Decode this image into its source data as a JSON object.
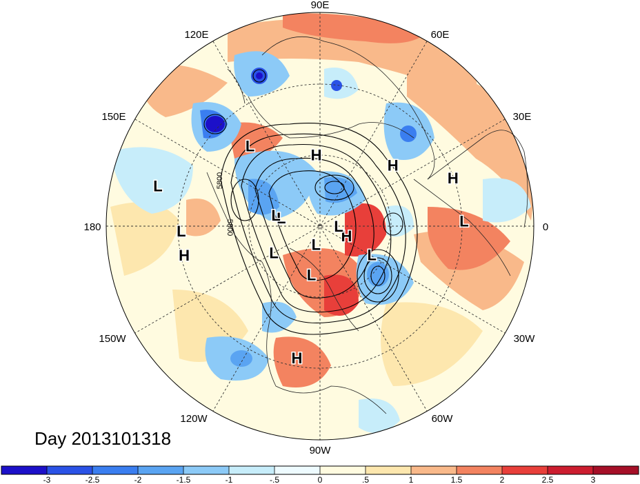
{
  "title": "Day 2013101318",
  "longitude_labels": {
    "e90": "90E",
    "e60": "60E",
    "e120": "120E",
    "e30": "30E",
    "e150": "150E",
    "zero": "0",
    "d180": "180",
    "w30": "30W",
    "w150": "150W",
    "w60": "60W",
    "w120": "120W",
    "w90": "90W"
  },
  "contour_labels": [
    "5800",
    "5800"
  ],
  "pressure_centers": [
    {
      "type": "H",
      "lon": 93,
      "lat": 53
    },
    {
      "type": "H",
      "lon": 40,
      "lat": 42
    },
    {
      "type": "H",
      "lon": 192,
      "lat": 24
    },
    {
      "type": "H",
      "lon": 20,
      "lat": 23
    },
    {
      "type": "H",
      "lon": -20,
      "lat": 75
    },
    {
      "type": "H",
      "lon": -100,
      "lat": 26
    },
    {
      "type": "L",
      "lon": 131,
      "lat": 37
    },
    {
      "type": "L",
      "lon": 166,
      "lat": 14
    },
    {
      "type": "L",
      "lon": 182,
      "lat": 24
    },
    {
      "type": "L",
      "lon": 168,
      "lat": 69
    },
    {
      "type": "L",
      "lon": 2,
      "lat": 22
    },
    {
      "type": "L",
      "lon": 166,
      "lat": 66
    },
    {
      "type": "L",
      "lon": 0,
      "lat": 80
    },
    {
      "type": "L",
      "lon": -29,
      "lat": 59
    },
    {
      "type": "L",
      "lon": -100,
      "lat": 64
    },
    {
      "type": "L",
      "lon": -150,
      "lat": 62
    },
    {
      "type": "L",
      "lon": -102,
      "lat": 80
    }
  ],
  "colorbar": {
    "colors": [
      "#1c10c9",
      "#2a52e6",
      "#3a7ef0",
      "#5aa4f2",
      "#8ccaf7",
      "#c7edfa",
      "#eefbff",
      "#fffbe0",
      "#fde7ae",
      "#f9b98a",
      "#f38360",
      "#e83f3a",
      "#cc1d2f",
      "#a50f27"
    ],
    "labels": [
      "-3",
      "-2.5",
      "-2",
      "-1.5",
      "-1",
      "-.5",
      "0",
      ".5",
      "1",
      "1.5",
      "2",
      "2.5",
      "3"
    ]
  }
}
